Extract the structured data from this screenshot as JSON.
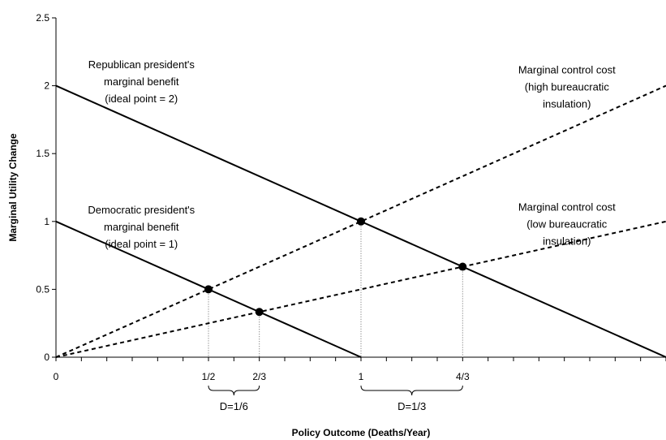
{
  "chart_data": {
    "type": "line",
    "title": "",
    "xlabel": "Policy Outcome (Deaths/Year)",
    "ylabel": "Marginal Utility Change",
    "xlim": [
      0,
      2
    ],
    "ylim": [
      0,
      2.5
    ],
    "y_ticks": [
      0,
      0.5,
      1,
      1.5,
      2,
      2.5
    ],
    "y_tick_labels": [
      "0",
      "0.5",
      "1",
      "1.5",
      "2",
      "2.5"
    ],
    "x_ticks": [
      0,
      0.5,
      0.6667,
      1,
      1.3333
    ],
    "x_tick_labels": [
      "0",
      "1/2",
      "2/3",
      "1",
      "4/3"
    ],
    "grid": false,
    "series": [
      {
        "name": "Republican president's marginal benefit (ideal point = 2)",
        "style": "solid",
        "x": [
          0,
          2
        ],
        "y": [
          2,
          0
        ]
      },
      {
        "name": "Democratic president's marginal benefit (ideal point = 1)",
        "style": "solid",
        "x": [
          0,
          1
        ],
        "y": [
          1,
          0
        ]
      },
      {
        "name": "Marginal control cost (high bureaucratic insulation)",
        "style": "dotted",
        "x": [
          0,
          2
        ],
        "y": [
          0,
          2
        ]
      },
      {
        "name": "Marginal control cost (low bureaucratic insulation)",
        "style": "dotted",
        "x": [
          0,
          2
        ],
        "y": [
          0,
          1
        ]
      }
    ],
    "intersections": [
      {
        "x": 0.5,
        "y": 0.5
      },
      {
        "x": 0.6667,
        "y": 0.3333
      },
      {
        "x": 1,
        "y": 1
      },
      {
        "x": 1.3333,
        "y": 0.6667
      }
    ],
    "annotations": [
      {
        "lines": [
          "Republican president's",
          "marginal benefit",
          "(ideal point = 2)"
        ],
        "x": 0.28,
        "y": 2.13
      },
      {
        "lines": [
          "Democratic president's",
          "marginal benefit",
          "(ideal point = 1)"
        ],
        "x": 0.28,
        "y": 1.06
      },
      {
        "lines": [
          "Marginal control cost",
          "(high bureaucratic",
          "insulation)"
        ],
        "x": 1.675,
        "y": 2.09
      },
      {
        "lines": [
          "Marginal control cost",
          "(low bureaucratic",
          "insulation)"
        ],
        "x": 1.675,
        "y": 1.08
      }
    ],
    "braces": [
      {
        "from": 0.5,
        "to": 0.6667,
        "label": "D=1/6"
      },
      {
        "from": 1,
        "to": 1.3333,
        "label": "D=1/3"
      }
    ]
  }
}
